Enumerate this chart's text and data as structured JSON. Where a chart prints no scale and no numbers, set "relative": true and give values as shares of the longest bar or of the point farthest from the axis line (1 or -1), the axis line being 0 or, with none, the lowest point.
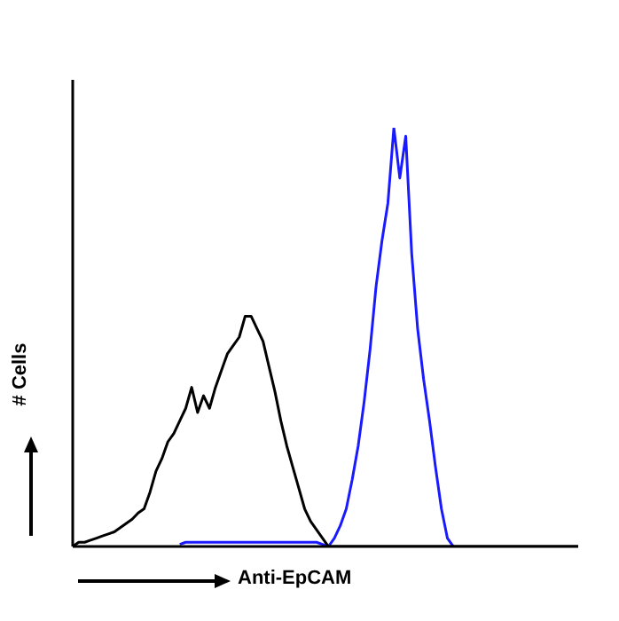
{
  "chart_data": {
    "type": "line",
    "xlabel": "Anti-EpCAM",
    "ylabel": "# Cells",
    "relative": true,
    "legend": false,
    "marker": "none",
    "categories": [
      null,
      null,
      null,
      null,
      null,
      null,
      null,
      null,
      null,
      null,
      null,
      null,
      null,
      null,
      null,
      null,
      null,
      null,
      null,
      null,
      null,
      null,
      null,
      null,
      null,
      null,
      null,
      null,
      null,
      null,
      null,
      null,
      null,
      null,
      null,
      null,
      null,
      null,
      null,
      null,
      null,
      null,
      null,
      null,
      null,
      null,
      null,
      null,
      null,
      null,
      null,
      null,
      null,
      null,
      null,
      null,
      null,
      null,
      null,
      null,
      null,
      null,
      null,
      null,
      null,
      null,
      null,
      null,
      null,
      null,
      null,
      null,
      null,
      null,
      null,
      null,
      null,
      null,
      null,
      null,
      null,
      null,
      null,
      null,
      null,
      null
    ],
    "series": [
      {
        "color": "#000000",
        "values": [
          0,
          0.01,
          0.01,
          0.015,
          0.02,
          0.025,
          0.03,
          0.035,
          0.045,
          0.055,
          0.065,
          0.08,
          0.09,
          0.13,
          0.18,
          0.21,
          0.25,
          0.27,
          0.3,
          0.33,
          0.38,
          0.32,
          0.36,
          0.33,
          0.38,
          0.42,
          0.46,
          0.48,
          0.5,
          0.55,
          0.55,
          0.52,
          0.49,
          0.43,
          0.37,
          0.3,
          0.24,
          0.19,
          0.14,
          0.09,
          0.06,
          0.04,
          0.02,
          0,
          0,
          0,
          0,
          0,
          0,
          0,
          0,
          0,
          0,
          0,
          0,
          0,
          0,
          0,
          0,
          0,
          0,
          0,
          0,
          0,
          0,
          0,
          0,
          0,
          0,
          0,
          0,
          0,
          0,
          0,
          0,
          0,
          0,
          0,
          0,
          0,
          0,
          0,
          0,
          0,
          0,
          0
        ]
      },
      {
        "color": "#1a1aff",
        "values": [
          null,
          null,
          null,
          null,
          null,
          null,
          null,
          null,
          null,
          null,
          null,
          null,
          null,
          null,
          null,
          null,
          null,
          null,
          0.005,
          0.01,
          0.01,
          0.01,
          0.01,
          0.01,
          0.01,
          0.01,
          0.01,
          0.01,
          0.01,
          0.01,
          0.01,
          0.01,
          0.01,
          0.01,
          0.01,
          0.01,
          0.01,
          0.01,
          0.01,
          0.01,
          0.01,
          0.01,
          0.005,
          0,
          0.02,
          0.05,
          0.09,
          0.16,
          0.24,
          0.345,
          0.47,
          0.62,
          0.73,
          0.82,
          1,
          0.88,
          0.98,
          0.7,
          0.52,
          0.4,
          0.3,
          0.19,
          0.09,
          0.02,
          0,
          null,
          null,
          null,
          null,
          null,
          null,
          null,
          null,
          null,
          null,
          null,
          null,
          null,
          null,
          null,
          null,
          null,
          null,
          null,
          null,
          null
        ]
      }
    ]
  }
}
